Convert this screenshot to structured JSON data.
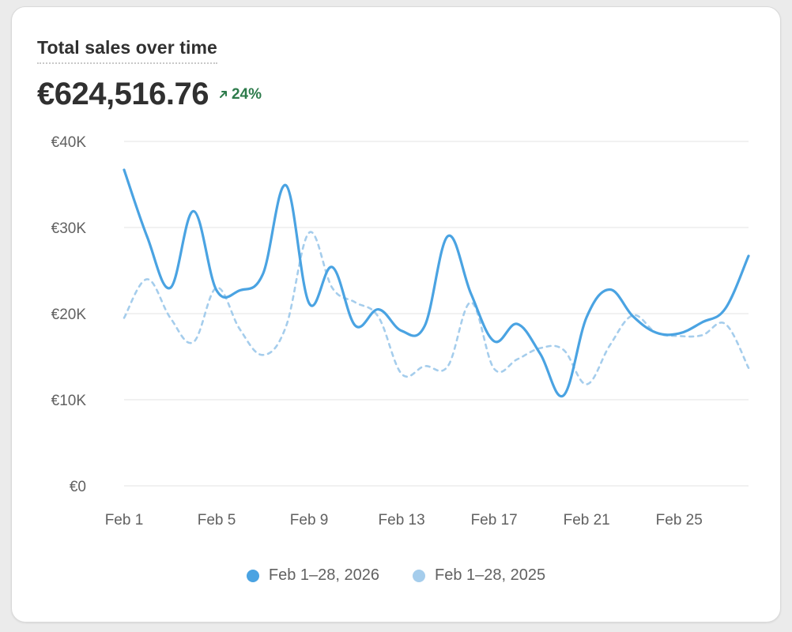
{
  "card": {
    "title": "Total sales over time",
    "total": "€624,516.76",
    "change": "24%"
  },
  "colors": {
    "current": "#4aa3e2",
    "previous": "#a5cdec",
    "grid": "#e3e3e3",
    "axis_text": "#616161",
    "positive": "#2d7b4b"
  },
  "chart_data": {
    "type": "line",
    "title": "Total sales over time",
    "xlabel": "",
    "ylabel": "",
    "ylim": [
      0,
      40000
    ],
    "y_ticks": [
      0,
      10000,
      20000,
      30000,
      40000
    ],
    "y_tick_labels": [
      "€0",
      "€10K",
      "€20K",
      "€30K",
      "€40K"
    ],
    "x_tick_indices": [
      0,
      4,
      8,
      12,
      16,
      20,
      24
    ],
    "x_tick_labels": [
      "Feb 1",
      "Feb 5",
      "Feb 9",
      "Feb 13",
      "Feb 17",
      "Feb 21",
      "Feb 25"
    ],
    "legend_position": "bottom-center",
    "x": [
      "Feb 1",
      "Feb 2",
      "Feb 3",
      "Feb 4",
      "Feb 5",
      "Feb 6",
      "Feb 7",
      "Feb 8",
      "Feb 9",
      "Feb 10",
      "Feb 11",
      "Feb 12",
      "Feb 13",
      "Feb 14",
      "Feb 15",
      "Feb 16",
      "Feb 17",
      "Feb 18",
      "Feb 19",
      "Feb 20",
      "Feb 21",
      "Feb 22",
      "Feb 23",
      "Feb 24",
      "Feb 25",
      "Feb 26",
      "Feb 27",
      "Feb 28"
    ],
    "series": [
      {
        "name": "Feb 1–28, 2026",
        "style": "solid",
        "values": [
          36700,
          28900,
          23000,
          31900,
          22700,
          22700,
          24600,
          34900,
          21200,
          25400,
          18600,
          20500,
          18000,
          18600,
          29000,
          22300,
          16800,
          18800,
          15300,
          10500,
          19600,
          22800,
          19700,
          17800,
          17700,
          19000,
          20600,
          26700
        ]
      },
      {
        "name": "Feb 1–28, 2025",
        "style": "dashed",
        "values": [
          19500,
          24000,
          19500,
          16700,
          23000,
          18200,
          15200,
          18500,
          29400,
          23000,
          21300,
          19600,
          13000,
          13900,
          13900,
          21300,
          13600,
          14700,
          16000,
          15800,
          11800,
          16300,
          19800,
          17800,
          17400,
          17500,
          18800,
          13700
        ]
      }
    ]
  }
}
